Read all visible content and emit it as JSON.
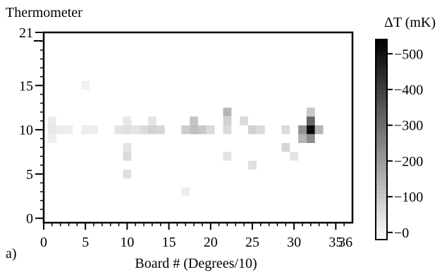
{
  "chart_data": {
    "type": "heatmap",
    "panel_label": "a)",
    "ylabel": "Thermometer",
    "xlabel": "Board # (Degrees/10)",
    "xlim": [
      0,
      37
    ],
    "ylim": [
      -0.5,
      21
    ],
    "x_ticks": [
      "0",
      "5",
      "10",
      "15",
      "20",
      "25",
      "30",
      "35"
    ],
    "x_tick_values": [
      0,
      5,
      10,
      15,
      20,
      25,
      30,
      35
    ],
    "x_extra_tick": {
      "label": "36",
      "value": 36
    },
    "y_ticks": [
      "0",
      "5",
      "10",
      "15",
      "21"
    ],
    "y_tick_values": [
      0,
      5,
      10,
      15,
      21
    ],
    "colorbar": {
      "label": "ΔT (mK)",
      "ticks": [
        "0",
        "100",
        "200",
        "300",
        "400",
        "500"
      ],
      "tick_values": [
        0,
        100,
        200,
        300,
        400,
        500
      ],
      "range": [
        -20,
        540
      ]
    },
    "cells": [
      [
        1,
        11,
        25
      ],
      [
        1,
        10,
        30
      ],
      [
        1,
        9,
        20
      ],
      [
        2,
        10,
        20
      ],
      [
        3,
        10,
        15
      ],
      [
        5,
        10,
        20
      ],
      [
        6,
        10,
        15
      ],
      [
        5,
        15,
        10
      ],
      [
        9,
        10,
        40
      ],
      [
        10,
        11,
        30
      ],
      [
        10,
        10,
        50
      ],
      [
        11,
        10,
        40
      ],
      [
        10,
        8,
        40
      ],
      [
        10,
        7,
        60
      ],
      [
        10,
        5,
        50
      ],
      [
        12,
        10,
        60
      ],
      [
        13,
        10,
        80
      ],
      [
        14,
        10,
        70
      ],
      [
        13,
        11,
        40
      ],
      [
        17,
        10,
        90
      ],
      [
        18,
        10,
        120
      ],
      [
        18,
        11,
        110
      ],
      [
        19,
        10,
        100
      ],
      [
        20,
        10,
        60
      ],
      [
        17,
        3,
        20
      ],
      [
        22,
        12,
        140
      ],
      [
        22,
        11,
        80
      ],
      [
        22,
        7,
        40
      ],
      [
        22,
        10,
        60
      ],
      [
        24,
        11,
        60
      ],
      [
        25,
        10,
        80
      ],
      [
        26,
        10,
        60
      ],
      [
        25,
        6,
        50
      ],
      [
        29,
        10,
        60
      ],
      [
        29,
        8,
        70
      ],
      [
        30,
        7,
        40
      ],
      [
        31,
        10,
        220
      ],
      [
        31,
        9,
        150
      ],
      [
        32,
        11,
        320
      ],
      [
        32,
        10,
        520
      ],
      [
        32,
        9,
        230
      ],
      [
        32,
        12,
        100
      ],
      [
        33,
        10,
        140
      ]
    ]
  }
}
